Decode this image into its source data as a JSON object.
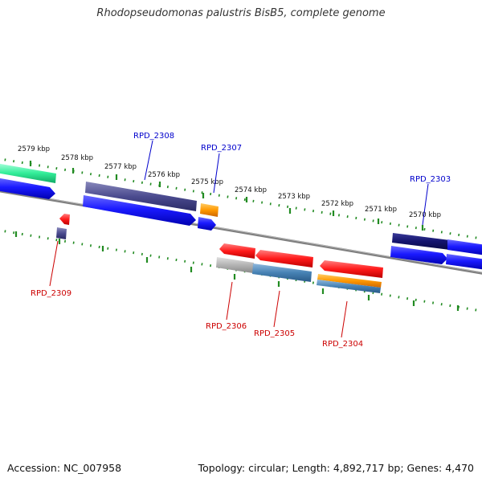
{
  "header": {
    "title": "Rhodopseudomonas palustris BisB5, complete genome"
  },
  "footer": {
    "accession": "Accession: NC_007958",
    "summary": "Topology: circular; Length: 4,892,717 bp; Genes: 4,470"
  },
  "colors": {
    "tick": "#228b22",
    "backbone": "#808080",
    "label_forward": "#0000cc",
    "label_reverse": "#cc0000",
    "cds_blue": "#1a1aff",
    "green_feature": "#33ee99",
    "purple_feature": "#4b4b8f",
    "navy_feature": "#14146e",
    "orange_feature": "#ff9900",
    "red_feature": "#ff1a1a",
    "grey_feature": "#b3b3b3",
    "steel_feature": "#4682b4"
  },
  "tick_labels": [
    {
      "text": "2579 kbp"
    },
    {
      "text": "2578 kbp"
    },
    {
      "text": "2577 kbp"
    },
    {
      "text": "2576 kbp"
    },
    {
      "text": "2575 kbp"
    },
    {
      "text": "2574 kbp"
    },
    {
      "text": "2573 kbp"
    },
    {
      "text": "2572 kbp"
    },
    {
      "text": "2571 kbp"
    },
    {
      "text": "2570 kbp"
    }
  ],
  "gene_labels": [
    {
      "text": "RPD_2308",
      "strand": "forward"
    },
    {
      "text": "RPD_2307",
      "strand": "forward"
    },
    {
      "text": "RPD_2303",
      "strand": "forward"
    },
    {
      "text": "RPD_2309",
      "strand": "reverse"
    },
    {
      "text": "RPD_2306",
      "strand": "reverse"
    },
    {
      "text": "RPD_2305",
      "strand": "reverse"
    },
    {
      "text": "RPD_2304",
      "strand": "reverse"
    }
  ]
}
